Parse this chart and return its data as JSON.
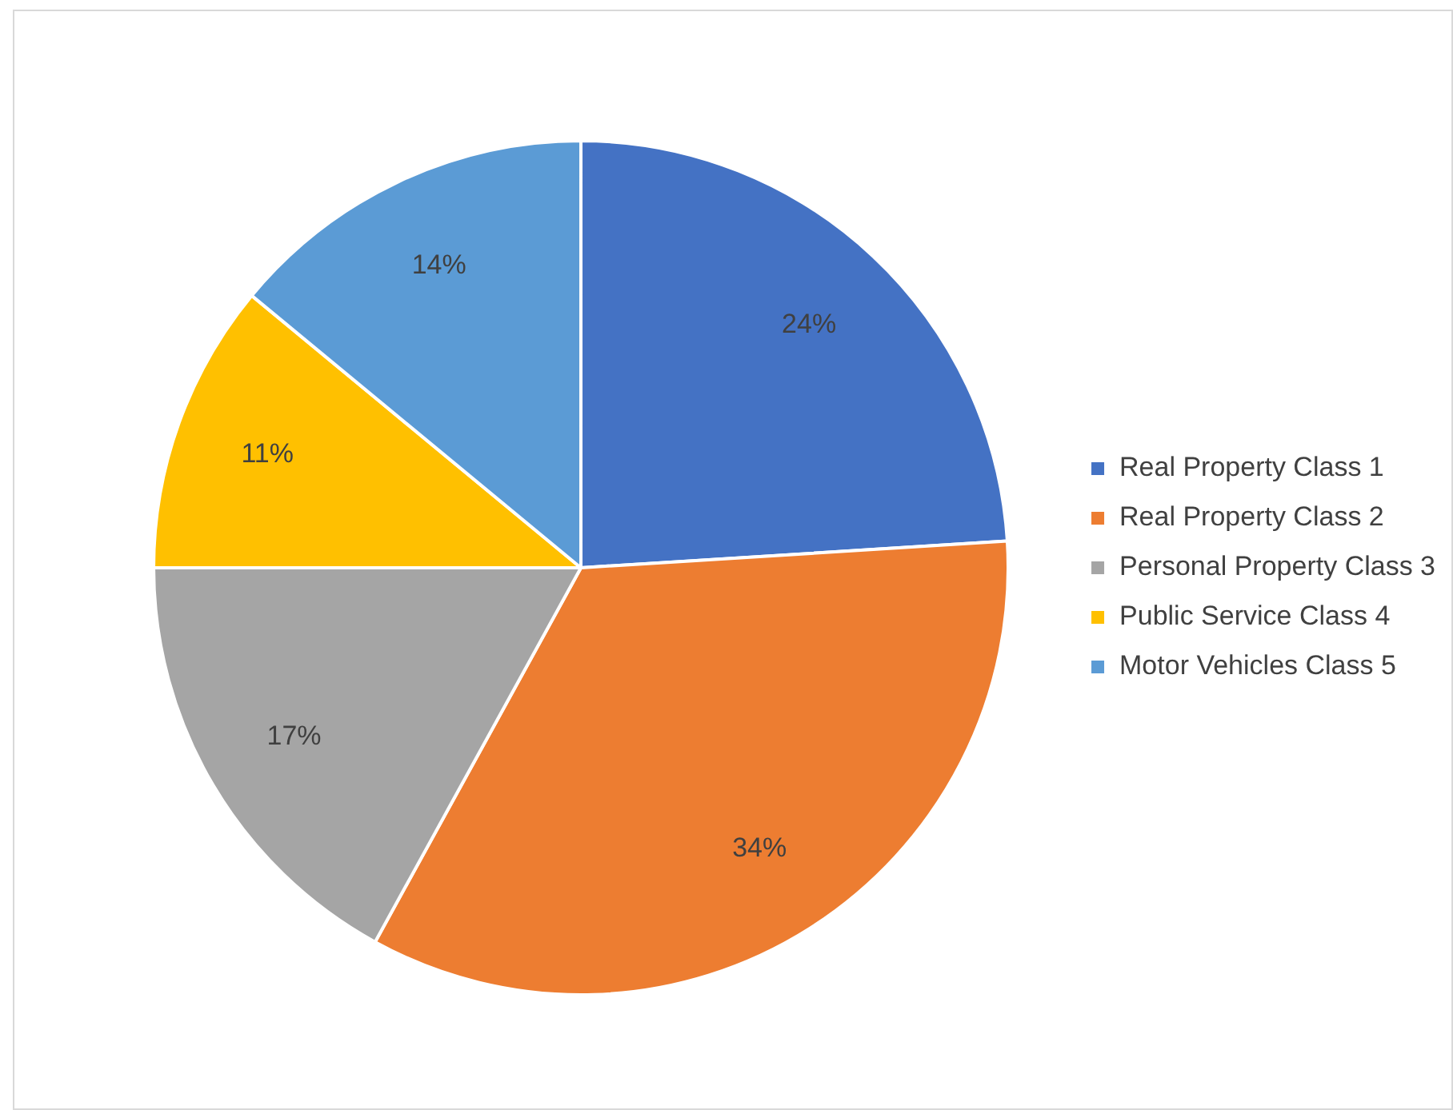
{
  "chart_data": {
    "type": "pie",
    "categories": [
      "Real Property Class 1",
      "Real Property Class 2",
      "Personal Property Class 3",
      "Public Service Class 4",
      "Motor Vehicles Class 5"
    ],
    "values": [
      24,
      34,
      17,
      11,
      14
    ],
    "colors": [
      "#4472c4",
      "#ed7d31",
      "#a5a5a5",
      "#ffc000",
      "#5b9bd5"
    ],
    "value_labels": [
      "24%",
      "34%",
      "17%",
      "11%",
      "14%"
    ],
    "legend": "right"
  }
}
